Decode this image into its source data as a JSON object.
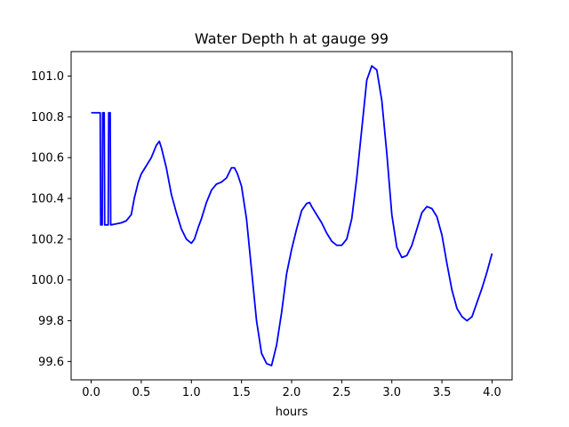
{
  "chart_data": {
    "type": "line",
    "title": "Water Depth h at gauge 99",
    "xlabel": "hours",
    "ylabel": "",
    "xlim": [
      -0.2,
      4.2
    ],
    "ylim": [
      99.51,
      101.12
    ],
    "xticks": [
      0.0,
      0.5,
      1.0,
      1.5,
      2.0,
      2.5,
      3.0,
      3.5,
      4.0
    ],
    "xtick_labels": [
      "0.0",
      "0.5",
      "1.0",
      "1.5",
      "2.0",
      "2.5",
      "3.0",
      "3.5",
      "4.0"
    ],
    "yticks": [
      99.6,
      99.8,
      100.0,
      100.2,
      100.4,
      100.6,
      100.8,
      101.0
    ],
    "ytick_labels": [
      "99.6",
      "99.8",
      "100.0",
      "100.2",
      "100.4",
      "100.6",
      "100.8",
      "101.0"
    ],
    "grid": false,
    "series": [
      {
        "color": "#0000ff",
        "x": [
          0.0,
          0.09,
          0.095,
          0.11,
          0.115,
          0.13,
          0.135,
          0.17,
          0.175,
          0.19,
          0.195,
          0.25,
          0.3,
          0.35,
          0.4,
          0.43,
          0.47,
          0.5,
          0.55,
          0.6,
          0.65,
          0.68,
          0.7,
          0.75,
          0.8,
          0.85,
          0.9,
          0.95,
          1.0,
          1.03,
          1.07,
          1.1,
          1.15,
          1.2,
          1.25,
          1.3,
          1.35,
          1.4,
          1.43,
          1.46,
          1.5,
          1.55,
          1.6,
          1.65,
          1.7,
          1.75,
          1.8,
          1.85,
          1.9,
          1.95,
          2.0,
          2.05,
          2.1,
          2.15,
          2.18,
          2.2,
          2.25,
          2.3,
          2.35,
          2.4,
          2.45,
          2.5,
          2.55,
          2.6,
          2.65,
          2.7,
          2.75,
          2.8,
          2.85,
          2.9,
          2.95,
          3.0,
          3.05,
          3.1,
          3.15,
          3.2,
          3.25,
          3.3,
          3.35,
          3.4,
          3.45,
          3.5,
          3.55,
          3.6,
          3.65,
          3.7,
          3.75,
          3.8,
          3.85,
          3.9,
          3.95,
          4.0
        ],
        "y": [
          100.82,
          100.82,
          100.27,
          100.27,
          100.82,
          100.82,
          100.27,
          100.27,
          100.82,
          100.82,
          100.27,
          100.275,
          100.28,
          100.29,
          100.32,
          100.4,
          100.48,
          100.52,
          100.56,
          100.6,
          100.66,
          100.68,
          100.65,
          100.55,
          100.42,
          100.33,
          100.25,
          100.2,
          100.18,
          100.2,
          100.26,
          100.3,
          100.38,
          100.44,
          100.47,
          100.48,
          100.5,
          100.55,
          100.55,
          100.52,
          100.46,
          100.3,
          100.05,
          99.8,
          99.64,
          99.59,
          99.58,
          99.68,
          99.84,
          100.03,
          100.15,
          100.25,
          100.34,
          100.375,
          100.38,
          100.36,
          100.32,
          100.28,
          100.23,
          100.19,
          100.17,
          100.17,
          100.2,
          100.3,
          100.5,
          100.74,
          100.98,
          101.05,
          101.03,
          100.88,
          100.62,
          100.32,
          100.16,
          100.11,
          100.12,
          100.17,
          100.25,
          100.33,
          100.36,
          100.35,
          100.31,
          100.22,
          100.08,
          99.95,
          99.86,
          99.82,
          99.8,
          99.82,
          99.89,
          99.96,
          100.04,
          100.13
        ]
      }
    ]
  }
}
